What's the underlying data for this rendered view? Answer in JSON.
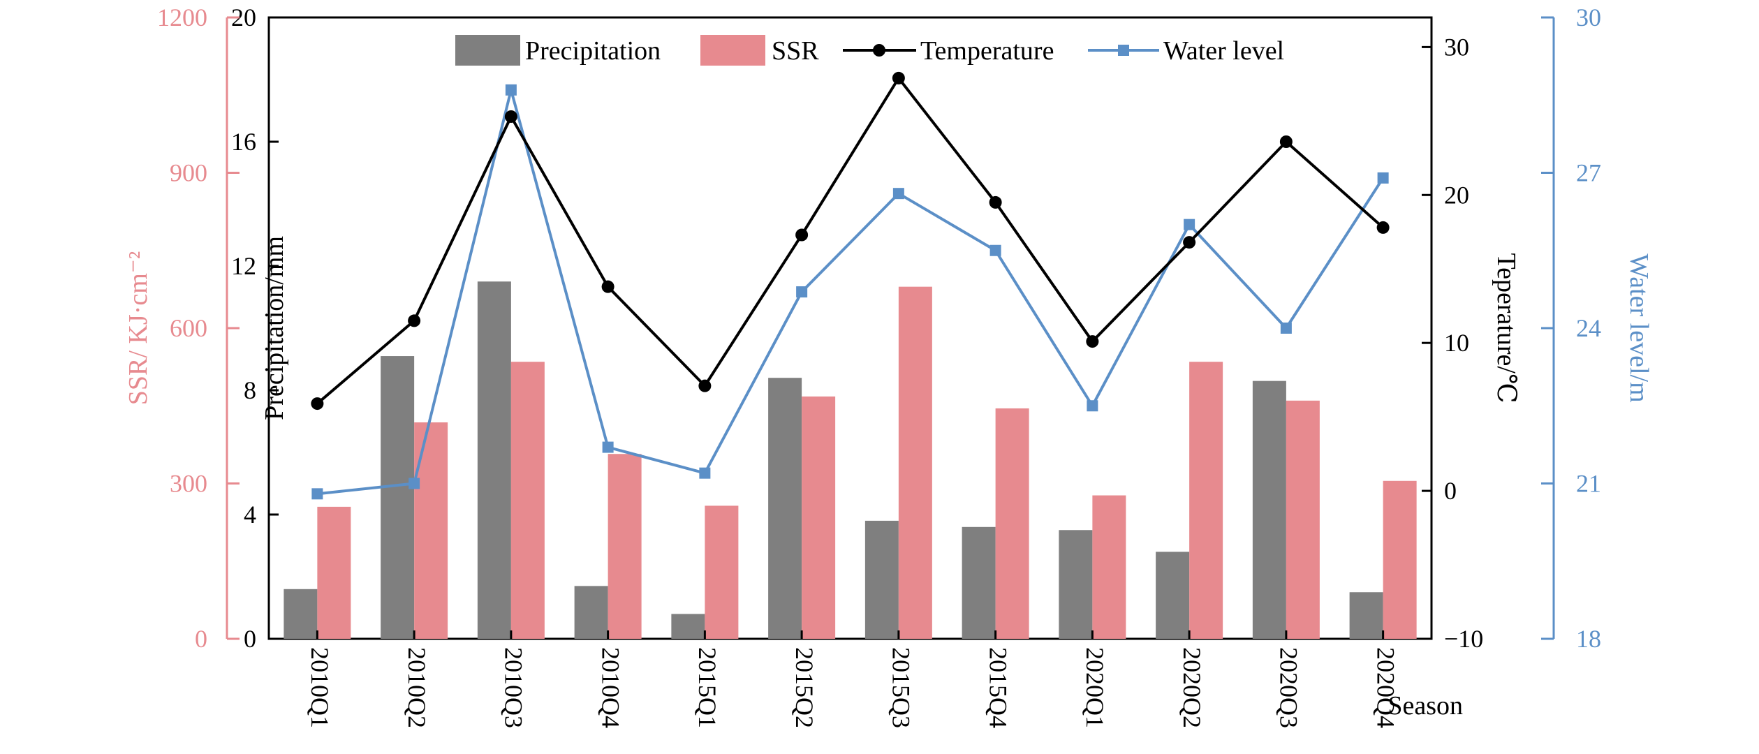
{
  "chart_data": {
    "type": "bar",
    "categories": [
      "2010Q1",
      "2010Q2",
      "2010Q3",
      "2010Q4",
      "2015Q1",
      "2015Q2",
      "2015Q3",
      "2015Q4",
      "2020Q1",
      "2020Q2",
      "2020Q3",
      "2020Q4"
    ],
    "xlabel": "Season",
    "series": [
      {
        "name": "Precipitation",
        "kind": "bar",
        "axis": "precip",
        "color": "#7f7f7f",
        "values": [
          1.6,
          9.1,
          11.5,
          1.7,
          0.8,
          8.4,
          3.8,
          3.6,
          3.5,
          2.8,
          8.3,
          1.5
        ]
      },
      {
        "name": "SSR",
        "kind": "bar",
        "axis": "ssr",
        "color": "#e78a8f",
        "values": [
          255,
          418,
          535,
          357,
          257,
          468,
          680,
          445,
          277,
          535,
          460,
          305
        ]
      },
      {
        "name": "Temperature",
        "kind": "line",
        "axis": "temp",
        "color": "#000000",
        "values": [
          5.9,
          11.5,
          25.3,
          13.8,
          7.1,
          17.3,
          27.9,
          19.5,
          10.1,
          16.8,
          23.6,
          17.8
        ]
      },
      {
        "name": "Water level",
        "kind": "line",
        "axis": "water",
        "color": "#5b8fc7",
        "values": [
          20.8,
          21.0,
          28.6,
          21.7,
          21.2,
          24.7,
          26.6,
          25.5,
          22.5,
          26.0,
          24.0,
          26.9
        ]
      }
    ],
    "axes": {
      "precip": {
        "label": "Precipitation/mm",
        "range": [
          0,
          20
        ],
        "ticks": [
          "0",
          "4",
          "8",
          "12",
          "16",
          "20"
        ],
        "color": "#000000"
      },
      "ssr": {
        "label": "SSR/ KJ·cm⁻²",
        "range": [
          0,
          1200
        ],
        "ticks": [
          "0",
          "300",
          "600",
          "900",
          "1200"
        ],
        "color": "#e78a8f"
      },
      "temp": {
        "label": "Teperature/℃",
        "range": [
          -10,
          32
        ],
        "ticks": [
          "−10",
          "0",
          "10",
          "20",
          "30"
        ],
        "color": "#000000"
      },
      "water": {
        "label": "Water level/m",
        "range": [
          18,
          30
        ],
        "ticks": [
          "18",
          "21",
          "24",
          "27",
          "30"
        ],
        "color": "#5b8fc7"
      }
    },
    "legend": {
      "position": "top-center"
    },
    "grid": false
  }
}
